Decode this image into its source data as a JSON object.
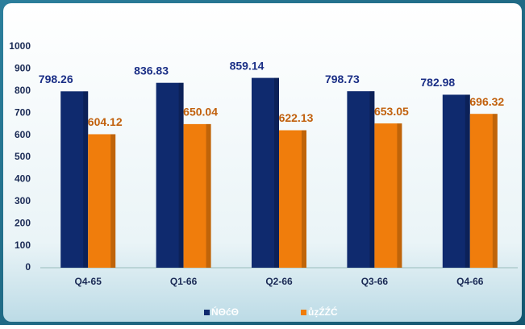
{
  "chart_data": {
    "type": "bar",
    "categories": [
      "Q4-65",
      "Q1-66",
      "Q2-66",
      "Q3-66",
      "Q4-66"
    ],
    "series": [
      {
        "name": "ŃΘćΘ",
        "color": "#0f2a6e",
        "label_color": "#1b2f86",
        "values": [
          798.26,
          836.83,
          859.14,
          798.73,
          782.98
        ]
      },
      {
        "name": "ůẓŹŹĆ",
        "color": "#f07d0c",
        "label_color": "#c1600c",
        "values": [
          604.12,
          650.04,
          622.13,
          653.05,
          696.32
        ]
      }
    ],
    "ylim": [
      0,
      1000
    ],
    "yticks": [
      0,
      100,
      200,
      300,
      400,
      500,
      600,
      700,
      800,
      900,
      1000
    ],
    "grid": false
  }
}
